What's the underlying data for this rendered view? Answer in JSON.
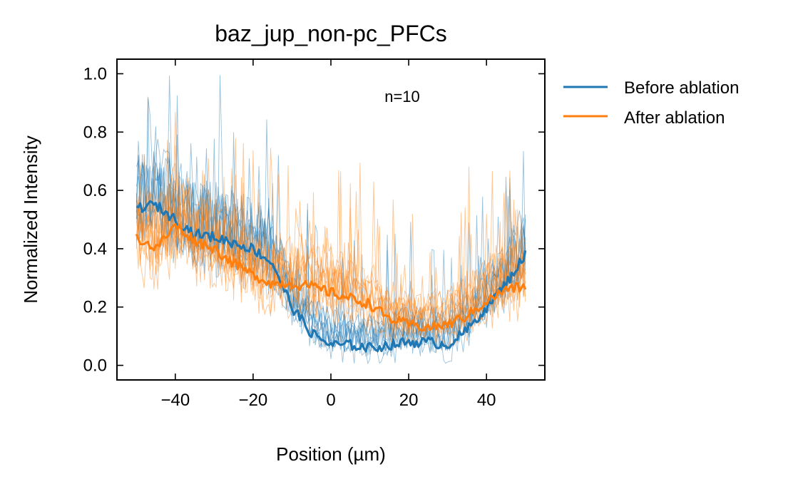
{
  "chart_data": {
    "type": "line",
    "title": "baz_jup_non-pc_PFCs",
    "xlabel": "Position (µm)",
    "ylabel": "Normalized Intensity",
    "xlim": [
      -55,
      55
    ],
    "ylim": [
      -0.05,
      1.05
    ],
    "xticks": [
      -40,
      -20,
      0,
      20,
      40
    ],
    "xtick_labels": [
      "−40",
      "−20",
      "0",
      "20",
      "40"
    ],
    "yticks": [
      0.0,
      0.2,
      0.4,
      0.6,
      0.8,
      1.0
    ],
    "ytick_labels": [
      "0.0",
      "0.2",
      "0.4",
      "0.6",
      "0.8",
      "1.0"
    ],
    "annotation": "n=10",
    "legend_position": "outside-right-top",
    "grid": false,
    "x": [
      -50,
      -45,
      -40,
      -35,
      -30,
      -25,
      -20,
      -15,
      -10,
      -5,
      0,
      5,
      10,
      15,
      20,
      25,
      30,
      35,
      40,
      45,
      50
    ],
    "series": [
      {
        "name": "Before ablation",
        "color": "#1f77b4",
        "values": [
          0.54,
          0.55,
          0.5,
          0.45,
          0.44,
          0.42,
          0.4,
          0.35,
          0.2,
          0.11,
          0.07,
          0.07,
          0.06,
          0.07,
          0.08,
          0.08,
          0.07,
          0.12,
          0.2,
          0.28,
          0.38
        ]
      },
      {
        "name": "After ablation",
        "color": "#ff7f0e",
        "values": [
          0.44,
          0.4,
          0.48,
          0.43,
          0.4,
          0.35,
          0.31,
          0.28,
          0.28,
          0.27,
          0.25,
          0.23,
          0.21,
          0.16,
          0.14,
          0.13,
          0.14,
          0.17,
          0.22,
          0.26,
          0.27
        ]
      }
    ]
  }
}
